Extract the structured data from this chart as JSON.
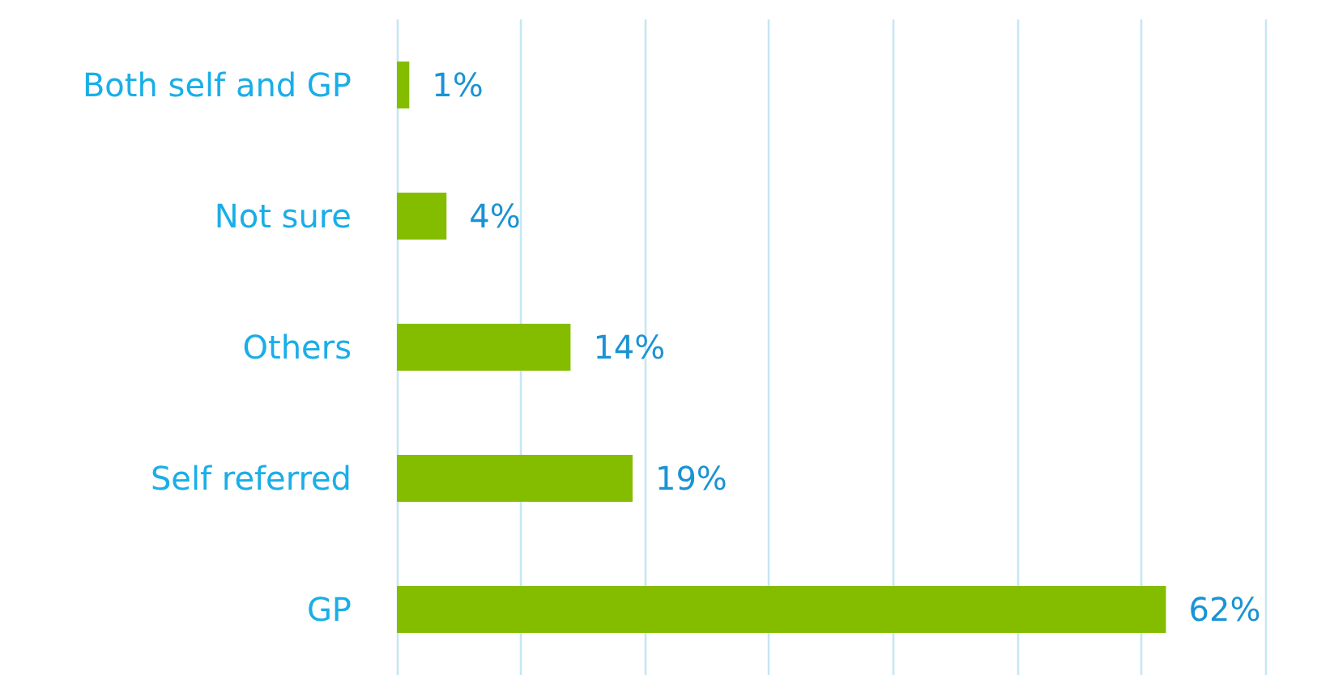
{
  "chart_data": {
    "type": "bar",
    "orientation": "horizontal",
    "categories": [
      "Both self and GP",
      "Not sure",
      "Others",
      "Self referred",
      "GP"
    ],
    "values": [
      1,
      4,
      14,
      19,
      62
    ],
    "value_labels": [
      "1%",
      "4%",
      "14%",
      "19%",
      "62%"
    ],
    "color": "#84bd00",
    "xlim": [
      0,
      70
    ],
    "xticks": [
      {
        "value": 0,
        "label": null
      },
      {
        "value": 10,
        "label": null
      },
      {
        "value": 20,
        "label": null
      },
      {
        "value": 30,
        "label": null
      },
      {
        "value": 40,
        "label": null
      },
      {
        "value": 50,
        "label": null
      },
      {
        "value": 60,
        "label": null
      },
      {
        "value": 70,
        "label": null
      }
    ],
    "grid": "x",
    "tick_labels": "y"
  }
}
